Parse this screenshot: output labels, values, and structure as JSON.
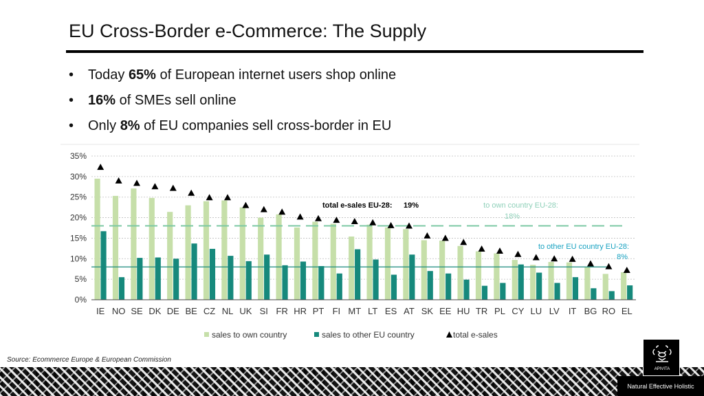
{
  "slide": {
    "title": "EU Cross-Border e-Commerce: The Supply",
    "bullets": [
      {
        "pre": "Today ",
        "bold": "65%",
        "post": " of European internet users shop online"
      },
      {
        "pre": "",
        "bold": "16%",
        "post": " of SMEs sell online"
      },
      {
        "pre": "Only ",
        "bold": "8%",
        "post": " of EU companies sell cross-border in EU"
      }
    ],
    "source": "Source: Ecommerce Europe & European Commission",
    "logo_text": "APIVITA",
    "tagline": "Natural Effective Holistic"
  },
  "colors": {
    "own": "#c6dfa9",
    "other": "#16897c",
    "marker": "#000000",
    "ref_own": "#7cc8a4",
    "ref_other": "#16897c",
    "annotation": "#8fd0b9",
    "annotation_other": "#18a2c1"
  },
  "chart_data": {
    "type": "bar",
    "categories": [
      "IE",
      "NO",
      "SE",
      "DK",
      "DE",
      "BE",
      "CZ",
      "NL",
      "UK",
      "SI",
      "FR",
      "HR",
      "PT",
      "FI",
      "MT",
      "LT",
      "ES",
      "AT",
      "SK",
      "EE",
      "HU",
      "TR",
      "PL",
      "CY",
      "LU",
      "LV",
      "IT",
      "BG",
      "RO",
      "EL"
    ],
    "series": [
      {
        "name": "sales to own country",
        "values": [
          29.5,
          25.3,
          27.1,
          24.8,
          21.4,
          23.0,
          24.0,
          24.2,
          22.5,
          20.0,
          20.8,
          17.6,
          19.0,
          18.5,
          15.4,
          18.3,
          17.6,
          17.2,
          14.5,
          14.4,
          13.1,
          11.8,
          11.3,
          9.7,
          8.5,
          9.2,
          9.1,
          8.0,
          6.3,
          6.7
        ]
      },
      {
        "name": "sales to other EU country",
        "values": [
          16.7,
          5.5,
          10.2,
          10.3,
          10.0,
          13.7,
          12.4,
          10.7,
          9.4,
          11.0,
          8.4,
          9.3,
          8.2,
          6.4,
          12.3,
          9.8,
          6.1,
          11.0,
          7.0,
          6.4,
          4.9,
          3.4,
          4.1,
          8.6,
          6.6,
          4.1,
          5.5,
          2.8,
          2.1,
          3.5
        ]
      },
      {
        "name": "total e-sales",
        "values": [
          32.3,
          29.0,
          28.4,
          27.6,
          27.2,
          26.0,
          24.9,
          24.9,
          23.0,
          22.0,
          21.4,
          20.2,
          19.8,
          19.4,
          19.1,
          18.8,
          18.1,
          18.0,
          15.6,
          15.0,
          14.0,
          12.4,
          11.9,
          11.1,
          10.3,
          10.0,
          9.9,
          8.8,
          8.1,
          7.2
        ]
      }
    ],
    "reference_lines": [
      {
        "label": "to own country EU-28:",
        "value_label": "18%",
        "value": 18
      },
      {
        "label": "to other EU country EU-28:",
        "value_label": "8%",
        "value": 8
      }
    ],
    "annotations": [
      {
        "label": "total e-sales EU-28:",
        "value_label": "19%"
      }
    ],
    "yticks": [
      "0%",
      "5%",
      "10%",
      "15%",
      "20%",
      "25%",
      "30%",
      "35%"
    ],
    "ylim": [
      0,
      35
    ],
    "grid": true,
    "legend_position": "bottom"
  }
}
